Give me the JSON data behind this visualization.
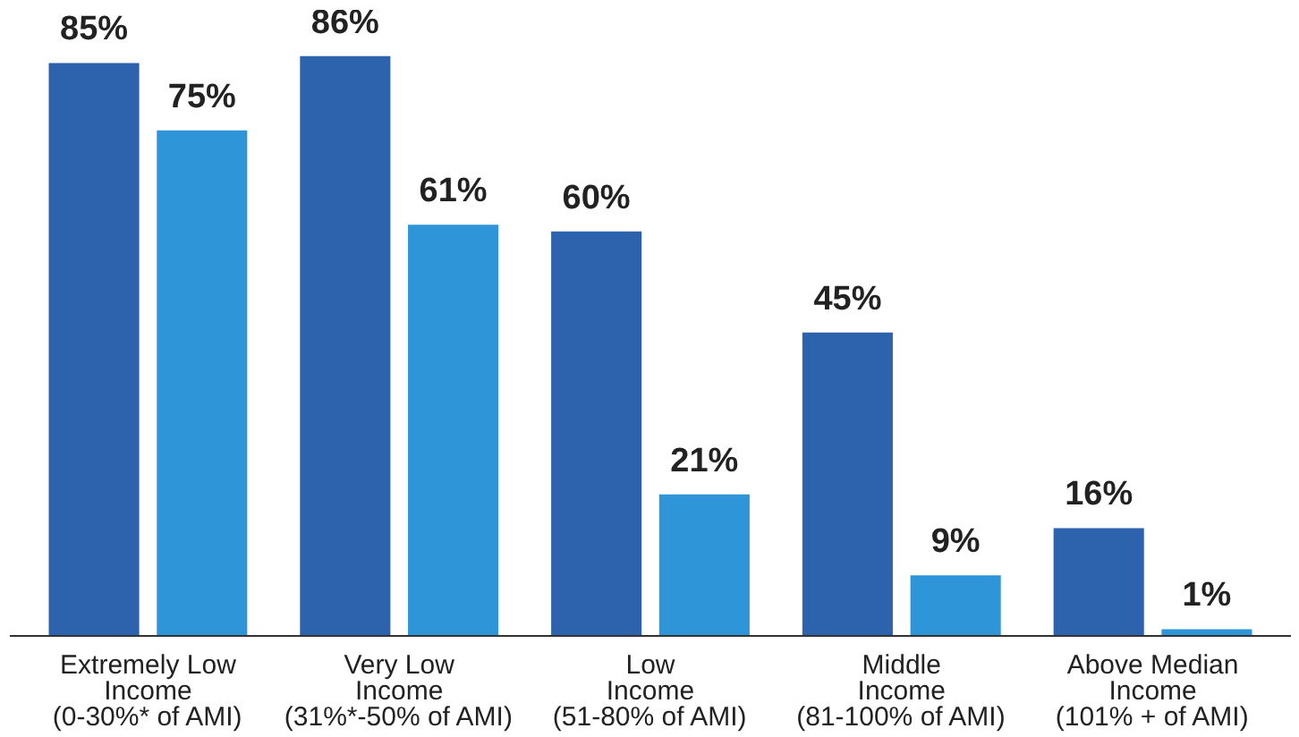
{
  "chart_data": {
    "type": "bar",
    "categories": [
      "Extremely Low\nIncome\n(0-30%* of AMI)",
      "Very Low\nIncome\n(31%*-50% of AMI)",
      "Low\nIncome\n(51-80% of AMI)",
      "Middle\nIncome\n(81-100% of AMI)",
      "Above Median\nIncome\n(101% + of AMI)"
    ],
    "series": [
      {
        "color": "#2d62ad",
        "values": [
          85,
          86,
          60,
          45,
          16
        ],
        "value_labels": [
          "85%",
          "86%",
          "60%",
          "45%",
          "16%"
        ]
      },
      {
        "color": "#2e96d8",
        "values": [
          75,
          61,
          21,
          9,
          1
        ],
        "value_labels": [
          "75%",
          "61%",
          "21%",
          "9%",
          "1%"
        ]
      }
    ]
  }
}
